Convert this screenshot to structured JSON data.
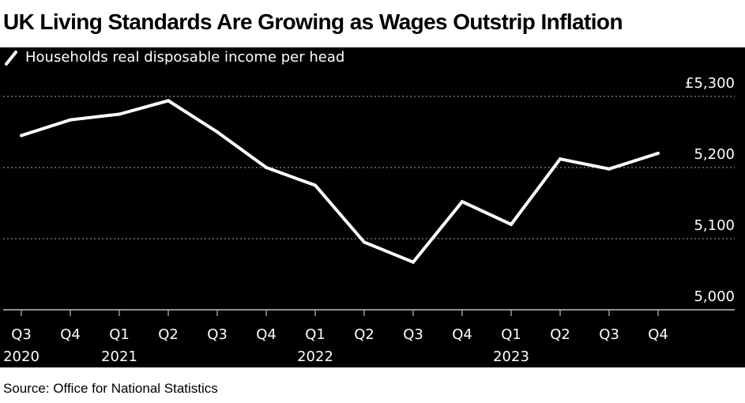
{
  "title": "UK Living Standards Are Growing as Wages Outstrip Inflation",
  "source": "Source: Office for National Statistics",
  "colors": {
    "background": "#000000",
    "line": "#ffffff",
    "text": "#ffffff",
    "grid": "#8c8c8c"
  },
  "chart_data": {
    "type": "line",
    "title": "UK Living Standards Are Growing as Wages Outstrip Inflation",
    "categories": [
      "Q3 2020",
      "Q4 2020",
      "Q1 2021",
      "Q2 2021",
      "Q3 2021",
      "Q4 2021",
      "Q1 2022",
      "Q2 2022",
      "Q3 2022",
      "Q4 2022",
      "Q1 2023",
      "Q2 2023",
      "Q3 2023",
      "Q4 2023"
    ],
    "x_tick_labels": [
      "Q3",
      "Q4",
      "Q1",
      "Q2",
      "Q3",
      "Q4",
      "Q1",
      "Q2",
      "Q3",
      "Q4",
      "Q1",
      "Q2",
      "Q3",
      "Q4"
    ],
    "x_year_labels": [
      {
        "index": 0,
        "label": "2020"
      },
      {
        "index": 2,
        "label": "2021"
      },
      {
        "index": 6,
        "label": "2022"
      },
      {
        "index": 10,
        "label": "2023"
      }
    ],
    "series": [
      {
        "name": "Households real disposable income per head",
        "values": [
          5245,
          5267,
          5275,
          5294,
          5250,
          5200,
          5175,
          5095,
          5067,
          5152,
          5120,
          5212,
          5198,
          5220
        ]
      }
    ],
    "y_ticks": [
      {
        "value": 5000,
        "label": "5,000"
      },
      {
        "value": 5100,
        "label": "5,100"
      },
      {
        "value": 5200,
        "label": "5,200"
      },
      {
        "value": 5300,
        "label": "£5,300"
      }
    ],
    "ylim": [
      5000,
      5300
    ],
    "grid": true,
    "legend_position": "top-left",
    "ylabel": "",
    "xlabel": ""
  }
}
